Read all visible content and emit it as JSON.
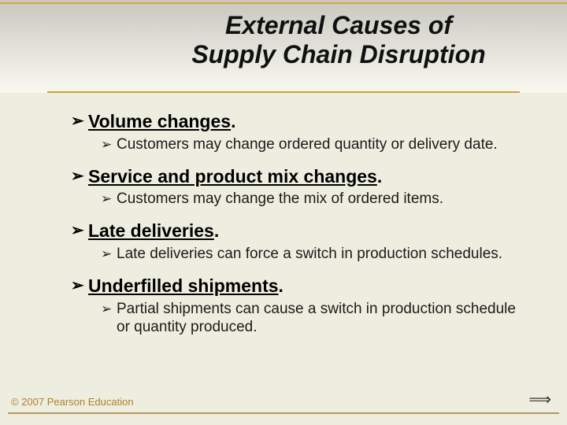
{
  "colors": {
    "slide_bg": "#eeeee0",
    "header_gradient_top": "#c8c8c0",
    "header_gradient_bottom": "#f8f8f0",
    "accent_line": "#d8a838",
    "title_underline": "#cda23a",
    "title_text": "#101010",
    "heading_text": "#000000",
    "sub_text": "#1a1a1a",
    "footer_text": "#b08028",
    "footer_line": "#b89658",
    "nav_arrow": "#303030"
  },
  "typography": {
    "title_fontsize_pt": 24,
    "title_style": "bold italic",
    "heading_fontsize_pt": 17,
    "heading_weight": "bold",
    "sub_fontsize_pt": 14,
    "footer_fontsize_pt": 10,
    "font_family": "Arial"
  },
  "title_line1": "External Causes of",
  "title_line2": "Supply Chain Disruption",
  "bullet_glyph": "➢",
  "items": [
    {
      "heading": "Volume changes",
      "sub": "Customers may change ordered quantity or delivery date."
    },
    {
      "heading": "Service and product mix changes",
      "sub": "Customers may change the mix of ordered items."
    },
    {
      "heading": "Late deliveries",
      "sub": "Late deliveries can force a switch in production schedules."
    },
    {
      "heading": "Underfilled shipments",
      "sub": "Partial shipments can cause a switch in production schedule or quantity produced."
    }
  ],
  "footer": "© 2007 Pearson Education",
  "nav_glyph": "⟹"
}
